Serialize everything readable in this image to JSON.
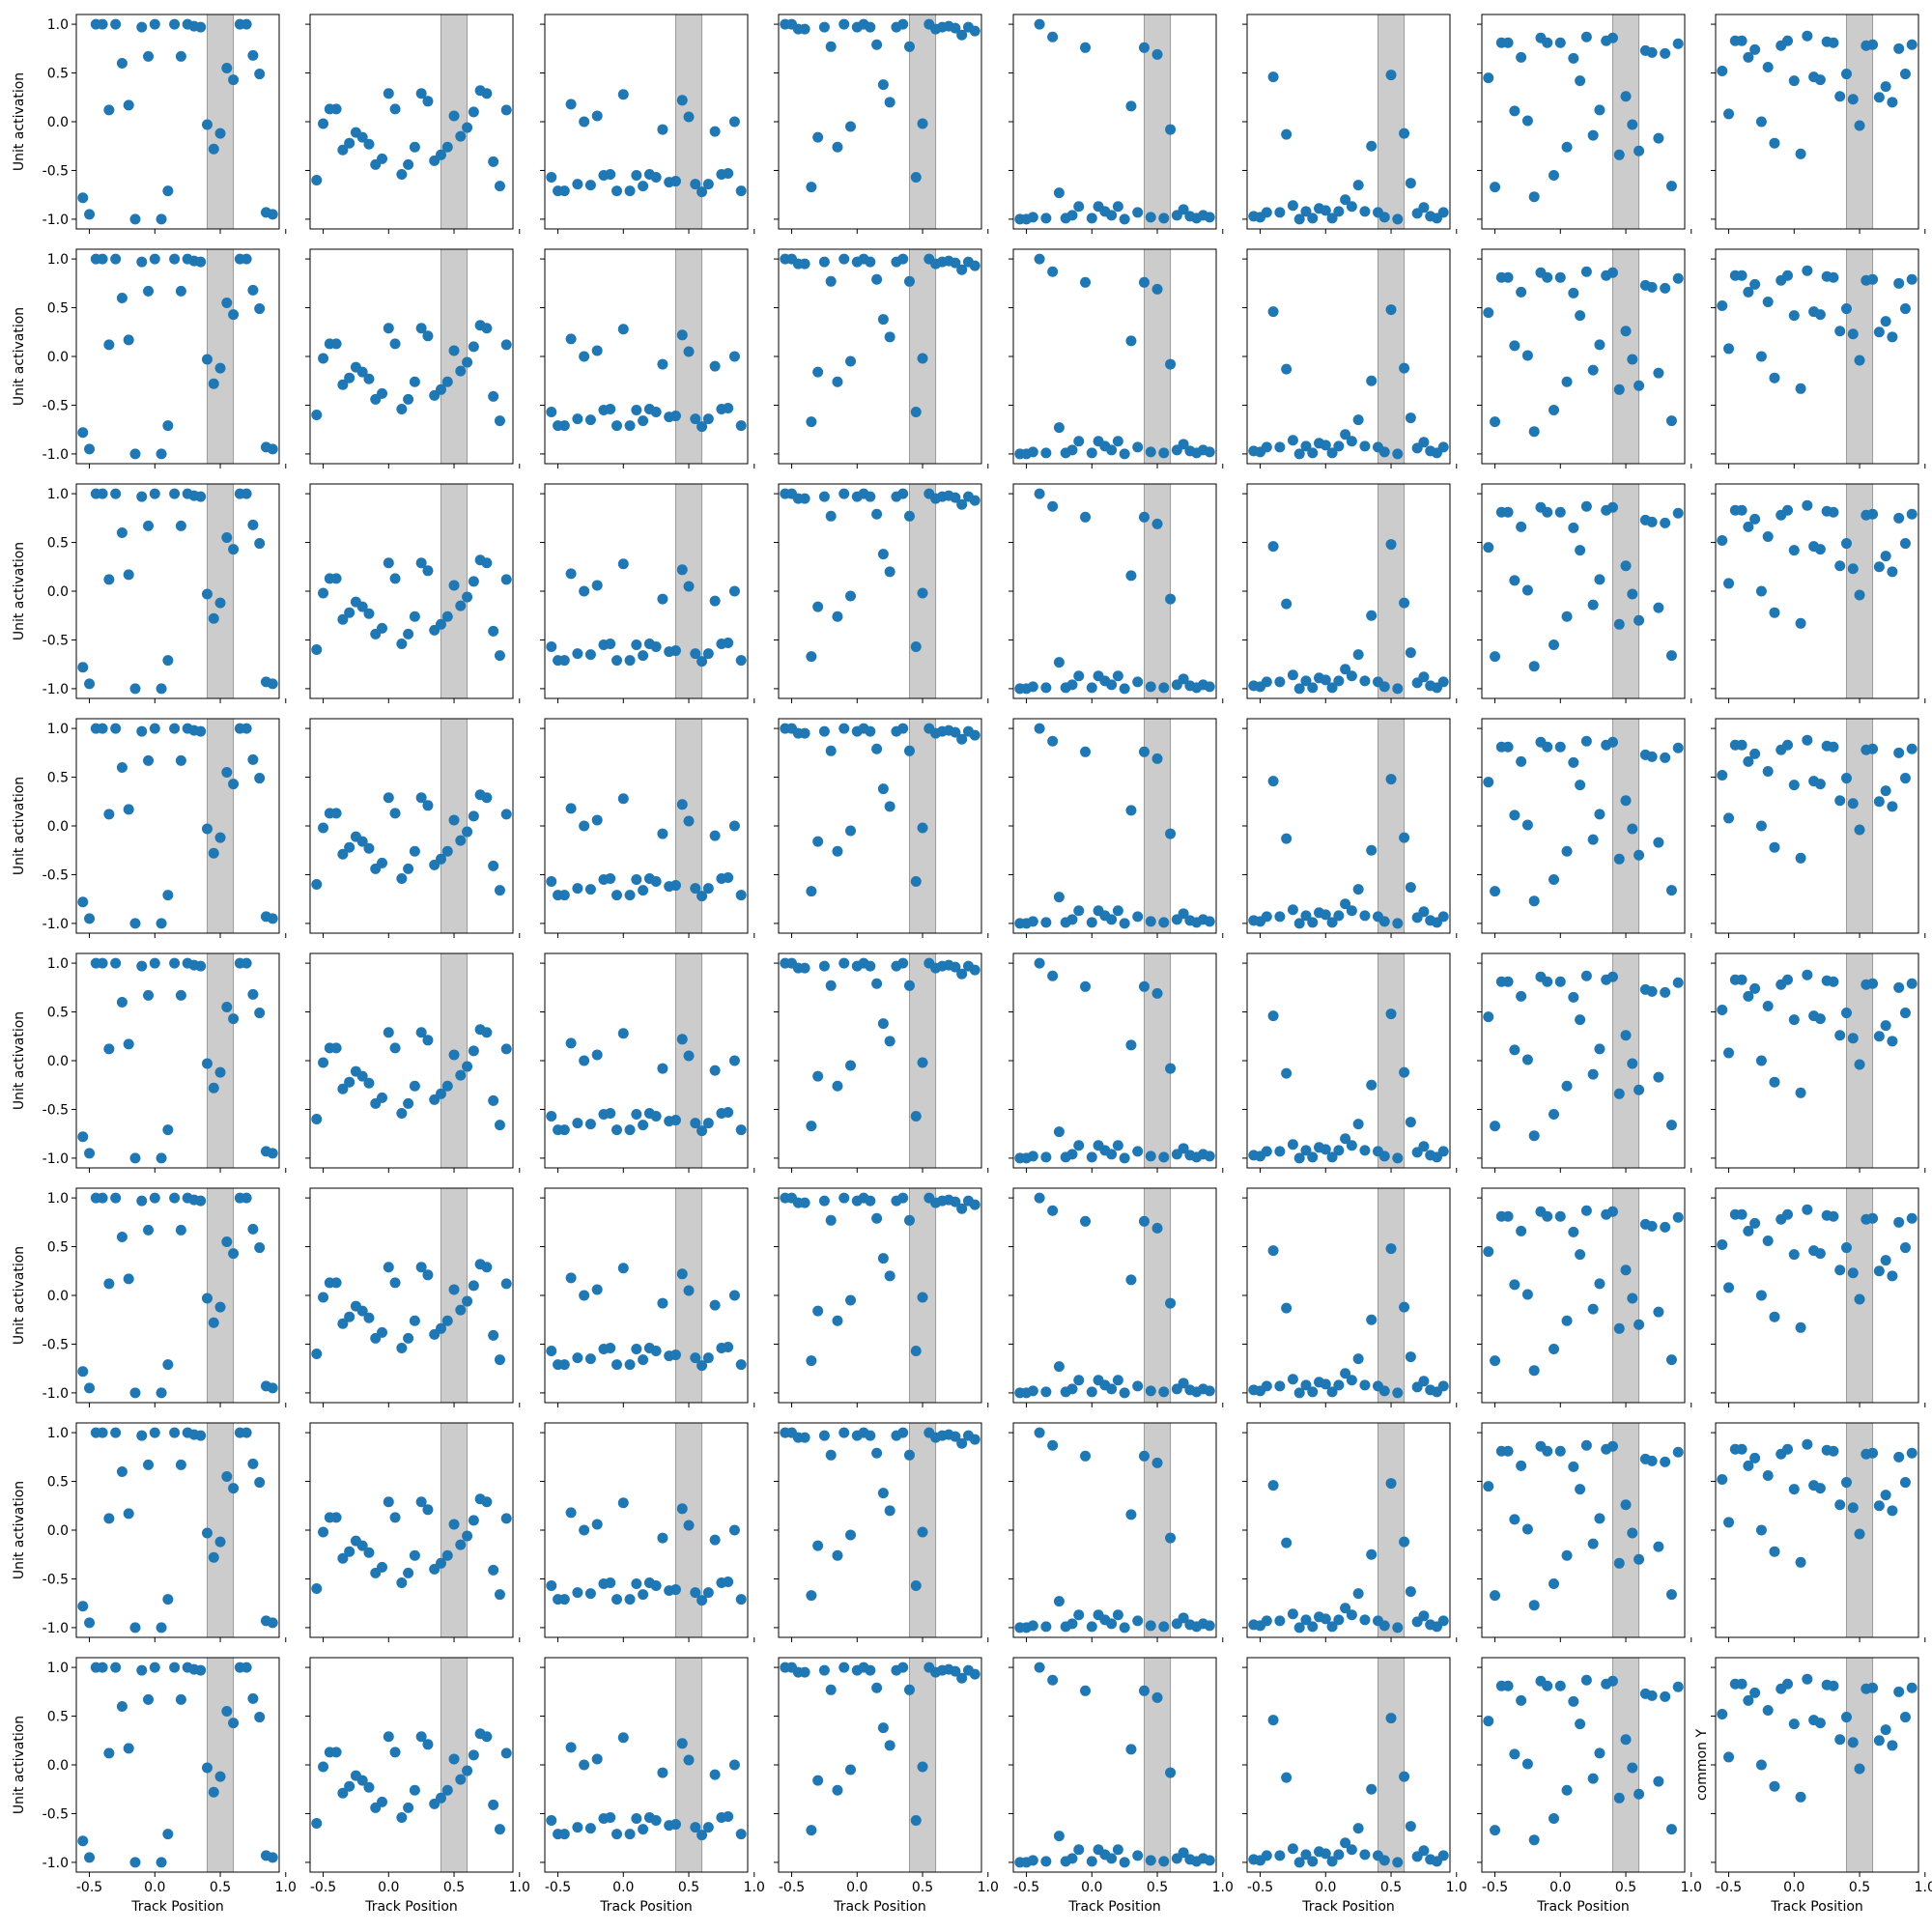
{
  "figure": {
    "ylabel": "Unit activation",
    "xlabel": "Track Position",
    "annotation": "common Y",
    "xticks": [
      "-0.5",
      "0.0",
      "0.5",
      "1.0"
    ],
    "yticks": [
      "1.0",
      "0.5",
      "0.0",
      "-0.5",
      "-1.0"
    ],
    "colors": {
      "marker": "#1f77b4",
      "band": "#cccccc",
      "band_edge": "#9a9a9a",
      "axes": "#000000"
    }
  },
  "chart_data": {
    "type": "scatter",
    "grid": false,
    "layout": "8x8 panels, shared x and y axes",
    "xlim": [
      -0.6,
      0.95
    ],
    "ylim": [
      -1.1,
      1.1
    ],
    "band": {
      "x0": 0.4,
      "x1": 0.6
    },
    "x": [
      -0.55,
      -0.5,
      -0.45,
      -0.4,
      -0.35,
      -0.3,
      -0.25,
      -0.2,
      -0.15,
      -0.1,
      -0.05,
      0.0,
      0.05,
      0.1,
      0.15,
      0.2,
      0.25,
      0.3,
      0.35,
      0.4,
      0.45,
      0.5,
      0.55,
      0.6,
      0.65,
      0.7,
      0.75,
      0.8,
      0.85,
      0.9
    ],
    "panels": [
      [
        -0.78,
        -0.95,
        1.0,
        1.0,
        0.12,
        1.0,
        0.6,
        0.17,
        -1.0,
        0.97,
        0.67,
        1.0,
        -1.0,
        -0.71,
        1.0,
        0.67,
        1.0,
        0.98,
        0.97,
        -0.03,
        -0.28,
        -0.12,
        0.55,
        0.43,
        1.0,
        1.0,
        0.68,
        0.49,
        -0.93,
        -0.95
      ],
      [
        -0.6,
        -0.02,
        0.13,
        0.13,
        -0.29,
        -0.22,
        -0.11,
        -0.16,
        -0.23,
        -0.44,
        -0.38,
        0.29,
        0.13,
        -0.54,
        -0.44,
        -0.26,
        0.29,
        0.21,
        -0.4,
        -0.34,
        -0.26,
        0.06,
        -0.15,
        -0.06,
        0.1,
        0.32,
        0.29,
        -0.41,
        -0.66,
        0.12
      ],
      [
        -0.57,
        -0.71,
        -0.71,
        0.18,
        -0.64,
        0.0,
        -0.65,
        0.06,
        -0.55,
        -0.54,
        -0.71,
        0.28,
        -0.71,
        -0.55,
        -0.66,
        -0.54,
        -0.57,
        -0.08,
        -0.62,
        -0.61,
        0.22,
        0.05,
        -0.64,
        -0.72,
        -0.64,
        -0.1,
        -0.54,
        -0.53,
        0.0,
        -0.71
      ],
      [
        1.0,
        1.0,
        0.95,
        0.95,
        -0.67,
        -0.16,
        0.97,
        0.77,
        -0.26,
        1.0,
        -0.05,
        0.97,
        1.0,
        0.97,
        0.79,
        0.38,
        0.2,
        0.97,
        1.0,
        0.77,
        -0.57,
        -0.02,
        1.0,
        0.95,
        0.97,
        0.98,
        0.96,
        0.89,
        0.97,
        0.93
      ],
      [
        -1.0,
        -1.0,
        -0.98,
        1.0,
        -0.99,
        0.87,
        -0.73,
        -0.99,
        -0.96,
        -0.87,
        0.76,
        -0.99,
        -0.87,
        -0.92,
        -0.96,
        -0.87,
        -1.0,
        0.16,
        -0.93,
        0.76,
        -0.98,
        0.69,
        -0.99,
        -0.08,
        -0.96,
        -0.9,
        -0.97,
        -0.99,
        -0.96,
        -0.98
      ],
      [
        -0.97,
        -0.98,
        -0.93,
        0.46,
        -0.93,
        -0.13,
        -0.86,
        -1.0,
        -0.92,
        -0.99,
        -0.89,
        -0.91,
        -0.99,
        -0.92,
        -0.8,
        -0.87,
        -0.65,
        -0.92,
        -0.25,
        -0.93,
        -0.98,
        0.48,
        -1.0,
        -0.12,
        -0.63,
        -0.94,
        -0.88,
        -0.97,
        -0.99,
        -0.93
      ],
      [
        0.45,
        -0.67,
        0.81,
        0.81,
        0.11,
        0.66,
        0.01,
        -0.77,
        0.86,
        0.81,
        -0.55,
        0.81,
        -0.26,
        0.65,
        0.42,
        0.87,
        -0.14,
        0.12,
        0.83,
        0.86,
        -0.34,
        0.26,
        -0.03,
        -0.3,
        0.73,
        0.71,
        -0.17,
        0.7,
        -0.66,
        0.8
      ],
      [
        0.52,
        0.08,
        0.83,
        0.83,
        0.66,
        0.74,
        0.0,
        0.56,
        -0.22,
        0.78,
        0.83,
        0.42,
        -0.33,
        0.88,
        0.46,
        0.43,
        0.82,
        0.81,
        0.26,
        0.49,
        0.23,
        -0.04,
        0.78,
        0.79,
        0.25,
        0.36,
        0.2,
        0.75,
        0.49,
        0.79
      ]
    ]
  }
}
